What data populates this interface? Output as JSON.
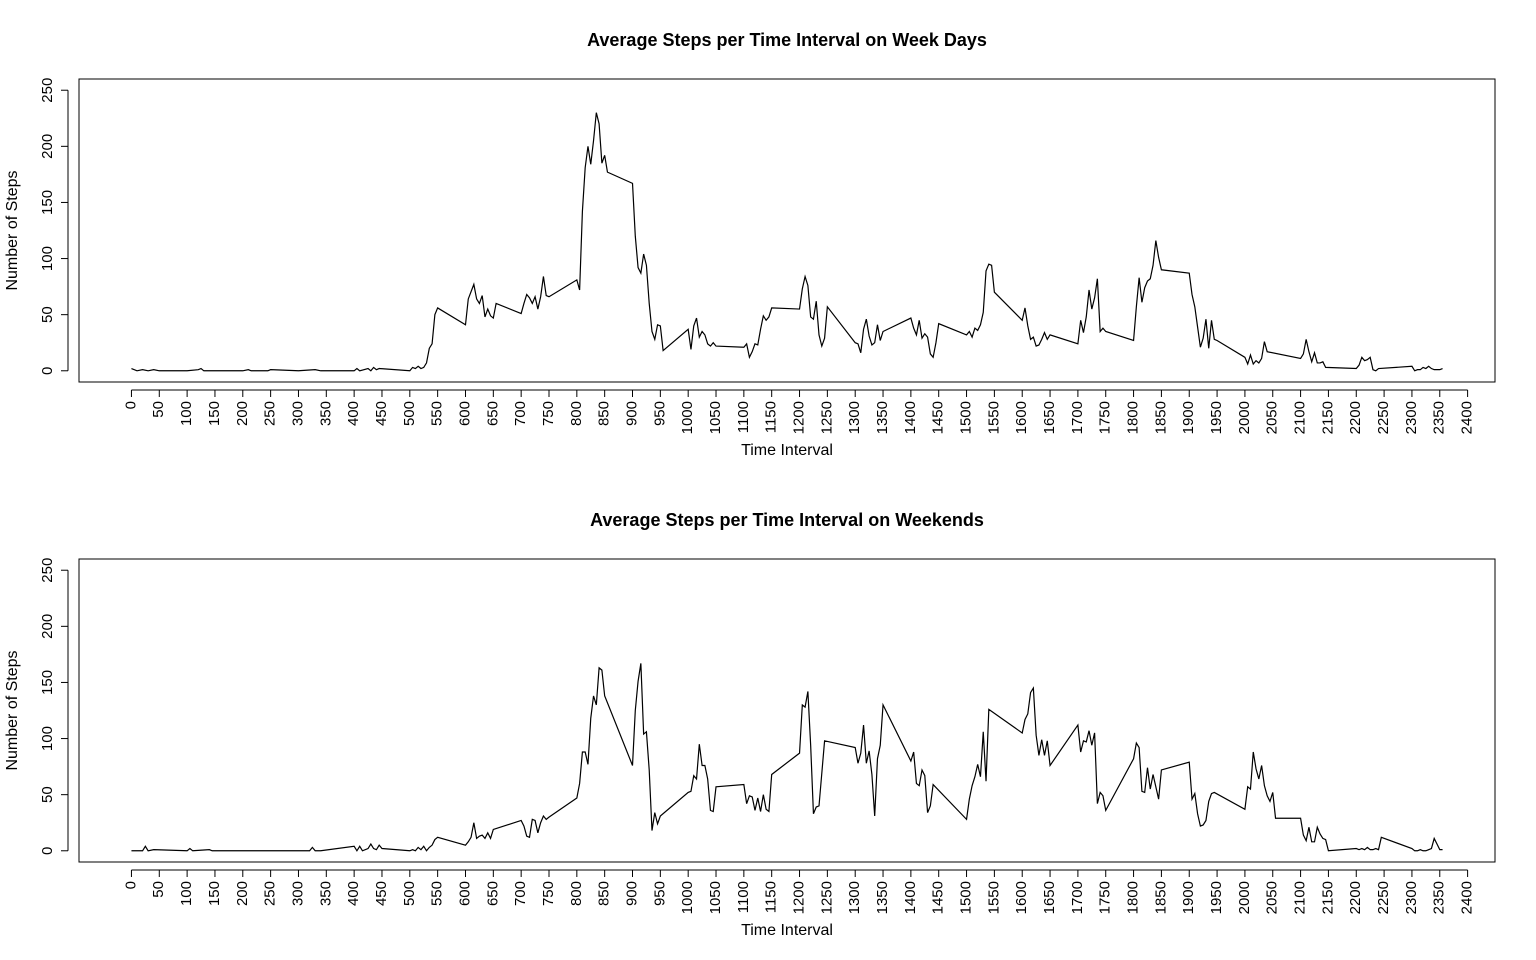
{
  "chart_data": [
    {
      "type": "line",
      "title": "Average Steps per Time Interval on Week Days",
      "xlabel": "Time Interval",
      "ylabel": "Number of Steps",
      "xlim": [
        -94.2,
        2449.2
      ],
      "ylim": [
        -10,
        260
      ],
      "xticks": [
        0,
        50,
        100,
        150,
        200,
        250,
        300,
        350,
        400,
        450,
        500,
        550,
        600,
        650,
        700,
        750,
        800,
        850,
        900,
        950,
        1000,
        1050,
        1100,
        1150,
        1200,
        1250,
        1300,
        1350,
        1400,
        1450,
        1500,
        1550,
        1600,
        1650,
        1700,
        1750,
        1800,
        1850,
        1900,
        1950,
        2000,
        2050,
        2100,
        2150,
        2200,
        2250,
        2300,
        2350,
        2400
      ],
      "yticks": [
        0,
        50,
        100,
        150,
        200,
        250
      ],
      "x": [
        0,
        10,
        20,
        30,
        40,
        50,
        100,
        120,
        125,
        130,
        200,
        210,
        215,
        245,
        250,
        300,
        330,
        340,
        400,
        405,
        410,
        425,
        430,
        435,
        440,
        445,
        500,
        505,
        510,
        515,
        520,
        525,
        530,
        535,
        540,
        545,
        550,
        600,
        605,
        615,
        620,
        625,
        630,
        635,
        640,
        645,
        650,
        655,
        700,
        705,
        710,
        715,
        720,
        725,
        730,
        735,
        740,
        745,
        750,
        800,
        805,
        810,
        815,
        820,
        825,
        830,
        835,
        840,
        845,
        850,
        855,
        900,
        905,
        910,
        915,
        920,
        925,
        930,
        935,
        940,
        945,
        950,
        955,
        1000,
        1005,
        1010,
        1015,
        1020,
        1025,
        1030,
        1035,
        1040,
        1045,
        1050,
        1100,
        1105,
        1110,
        1115,
        1120,
        1125,
        1130,
        1135,
        1140,
        1145,
        1150,
        1200,
        1205,
        1210,
        1215,
        1220,
        1225,
        1230,
        1235,
        1240,
        1245,
        1250,
        1300,
        1305,
        1310,
        1315,
        1320,
        1325,
        1330,
        1335,
        1340,
        1345,
        1350,
        1400,
        1405,
        1410,
        1415,
        1420,
        1425,
        1430,
        1435,
        1440,
        1445,
        1450,
        1500,
        1505,
        1510,
        1515,
        1520,
        1525,
        1530,
        1535,
        1540,
        1545,
        1550,
        1600,
        1605,
        1610,
        1615,
        1620,
        1625,
        1630,
        1635,
        1640,
        1645,
        1650,
        1700,
        1705,
        1710,
        1715,
        1720,
        1725,
        1730,
        1735,
        1740,
        1745,
        1750,
        1800,
        1805,
        1810,
        1815,
        1820,
        1825,
        1830,
        1835,
        1840,
        1845,
        1850,
        1900,
        1905,
        1910,
        1915,
        1920,
        1925,
        1930,
        1935,
        1940,
        1945,
        1950,
        2000,
        2005,
        2010,
        2015,
        2020,
        2025,
        2030,
        2035,
        2040,
        2100,
        2105,
        2110,
        2115,
        2120,
        2125,
        2130,
        2135,
        2140,
        2145,
        2200,
        2205,
        2210,
        2215,
        2220,
        2225,
        2230,
        2235,
        2240,
        2300,
        2305,
        2310,
        2315,
        2320,
        2325,
        2330,
        2335,
        2340,
        2345,
        2350,
        2355
      ],
      "series": [
        {
          "color": "#000000",
          "values": [
            2,
            0,
            1,
            0,
            1,
            0,
            0,
            1,
            2,
            0,
            0,
            1,
            0,
            0,
            1,
            0,
            1,
            0,
            0,
            2,
            0,
            2,
            0,
            3,
            1,
            2,
            0,
            3,
            2,
            4,
            2,
            3,
            7,
            20,
            24,
            50,
            56,
            41,
            64,
            77,
            64,
            60,
            67,
            48,
            55,
            49,
            47,
            60,
            51,
            60,
            68,
            65,
            60,
            66,
            55,
            66,
            84,
            67,
            66,
            81,
            72,
            142,
            181,
            200,
            184,
            205,
            230,
            220,
            185,
            192,
            177,
            167,
            120,
            92,
            87,
            104,
            94,
            60,
            35,
            28,
            41,
            40,
            18,
            37,
            19,
            40,
            47,
            30,
            35,
            32,
            24,
            22,
            25,
            22,
            21,
            24,
            12,
            17,
            24,
            23,
            37,
            49,
            45,
            48,
            56,
            55,
            73,
            84,
            76,
            48,
            46,
            62,
            32,
            22,
            29,
            57,
            25,
            24,
            16,
            37,
            46,
            31,
            23,
            25,
            41,
            27,
            35,
            47,
            38,
            32,
            45,
            29,
            33,
            30,
            15,
            12,
            25,
            42,
            32,
            35,
            30,
            38,
            36,
            41,
            52,
            89,
            95,
            94,
            70,
            45,
            56,
            40,
            28,
            30,
            22,
            23,
            28,
            34,
            28,
            32,
            24,
            45,
            34,
            48,
            72,
            55,
            65,
            82,
            35,
            38,
            35,
            27,
            57,
            83,
            61,
            74,
            80,
            82,
            94,
            116,
            101,
            90,
            87,
            68,
            57,
            39,
            21,
            29,
            46,
            20,
            45,
            28,
            27,
            12,
            6,
            14,
            6,
            9,
            7,
            11,
            26,
            17,
            11,
            15,
            28,
            17,
            8,
            16,
            7,
            7,
            8,
            3,
            2,
            5,
            12,
            9,
            10,
            12,
            1,
            0,
            2,
            4,
            0,
            1,
            1,
            3,
            2,
            4,
            2,
            1,
            1,
            1,
            2
          ]
        }
      ]
    },
    {
      "type": "line",
      "title": "Average Steps per Time Interval on Weekends",
      "xlabel": "Time Interval",
      "ylabel": "Number of Steps",
      "xlim": [
        -94.2,
        2449.2
      ],
      "ylim": [
        -10,
        260
      ],
      "xticks": [
        0,
        50,
        100,
        150,
        200,
        250,
        300,
        350,
        400,
        450,
        500,
        550,
        600,
        650,
        700,
        750,
        800,
        850,
        900,
        950,
        1000,
        1050,
        1100,
        1150,
        1200,
        1250,
        1300,
        1350,
        1400,
        1450,
        1500,
        1550,
        1600,
        1650,
        1700,
        1750,
        1800,
        1850,
        1900,
        1950,
        2000,
        2050,
        2100,
        2150,
        2200,
        2250,
        2300,
        2350,
        2400
      ],
      "yticks": [
        0,
        50,
        100,
        150,
        200,
        250
      ],
      "x": [
        0,
        20,
        25,
        30,
        40,
        100,
        105,
        110,
        140,
        145,
        200,
        300,
        320,
        325,
        330,
        340,
        400,
        405,
        410,
        415,
        425,
        430,
        435,
        440,
        445,
        450,
        500,
        505,
        510,
        515,
        520,
        525,
        530,
        535,
        540,
        545,
        550,
        600,
        605,
        610,
        615,
        620,
        625,
        630,
        635,
        640,
        645,
        650,
        700,
        705,
        710,
        715,
        720,
        725,
        730,
        735,
        740,
        745,
        750,
        800,
        805,
        810,
        815,
        820,
        825,
        830,
        835,
        840,
        845,
        850,
        900,
        905,
        910,
        915,
        920,
        925,
        930,
        935,
        940,
        945,
        950,
        1000,
        1005,
        1010,
        1015,
        1020,
        1025,
        1030,
        1035,
        1040,
        1045,
        1050,
        1100,
        1105,
        1110,
        1115,
        1120,
        1125,
        1130,
        1135,
        1140,
        1145,
        1150,
        1200,
        1205,
        1210,
        1215,
        1220,
        1225,
        1230,
        1235,
        1245,
        1300,
        1305,
        1310,
        1315,
        1320,
        1325,
        1330,
        1335,
        1340,
        1345,
        1350,
        1400,
        1405,
        1410,
        1415,
        1420,
        1425,
        1430,
        1435,
        1440,
        1500,
        1505,
        1510,
        1515,
        1520,
        1525,
        1530,
        1535,
        1540,
        1600,
        1605,
        1610,
        1615,
        1620,
        1625,
        1630,
        1635,
        1640,
        1645,
        1650,
        1700,
        1705,
        1710,
        1715,
        1720,
        1725,
        1730,
        1735,
        1740,
        1745,
        1750,
        1800,
        1805,
        1810,
        1815,
        1820,
        1825,
        1830,
        1835,
        1840,
        1845,
        1850,
        1900,
        1905,
        1910,
        1915,
        1920,
        1925,
        1930,
        1935,
        1940,
        1945,
        2000,
        2005,
        2010,
        2015,
        2020,
        2025,
        2030,
        2035,
        2040,
        2045,
        2050,
        2055,
        2100,
        2105,
        2110,
        2115,
        2120,
        2125,
        2130,
        2135,
        2140,
        2145,
        2150,
        2200,
        2205,
        2210,
        2215,
        2220,
        2225,
        2230,
        2235,
        2240,
        2245,
        2300,
        2305,
        2310,
        2315,
        2320,
        2325,
        2330,
        2335,
        2340,
        2345,
        2350,
        2355
      ],
      "series": [
        {
          "color": "#000000",
          "values": [
            0,
            0,
            4,
            0,
            1,
            0,
            2,
            0,
            1,
            0,
            0,
            0,
            0,
            3,
            0,
            0,
            4,
            0,
            4,
            0,
            2,
            6,
            2,
            1,
            5,
            2,
            0,
            1,
            0,
            3,
            1,
            4,
            0,
            3,
            5,
            10,
            12,
            5,
            8,
            12,
            25,
            11,
            13,
            14,
            11,
            16,
            11,
            19,
            27,
            22,
            13,
            12,
            28,
            27,
            16,
            25,
            31,
            28,
            30,
            47,
            60,
            88,
            88,
            77,
            118,
            138,
            130,
            163,
            161,
            138,
            76,
            125,
            151,
            167,
            104,
            106,
            72,
            18,
            34,
            24,
            31,
            52,
            53,
            67,
            64,
            95,
            76,
            76,
            64,
            36,
            35,
            57,
            59,
            42,
            49,
            48,
            36,
            47,
            35,
            50,
            37,
            35,
            68,
            87,
            130,
            128,
            142,
            94,
            33,
            39,
            40,
            98,
            92,
            78,
            87,
            112,
            78,
            89,
            68,
            31,
            82,
            94,
            130,
            80,
            88,
            60,
            58,
            72,
            67,
            34,
            40,
            59,
            28,
            46,
            58,
            66,
            77,
            66,
            106,
            62,
            126,
            105,
            117,
            122,
            141,
            145,
            103,
            85,
            99,
            85,
            98,
            76,
            112,
            88,
            98,
            97,
            107,
            94,
            105,
            42,
            52,
            49,
            36,
            82,
            96,
            92,
            53,
            52,
            74,
            55,
            68,
            57,
            46,
            72,
            79,
            46,
            51,
            33,
            22,
            23,
            27,
            44,
            51,
            52,
            37,
            57,
            55,
            88,
            73,
            64,
            76,
            58,
            49,
            44,
            52,
            29,
            29,
            14,
            9,
            21,
            8,
            8,
            21,
            15,
            11,
            10,
            0,
            2,
            1,
            2,
            1,
            3,
            1,
            1,
            2,
            1,
            12,
            2,
            0,
            0,
            1,
            0,
            0,
            1,
            2,
            11,
            6,
            1,
            1
          ]
        }
      ]
    }
  ]
}
